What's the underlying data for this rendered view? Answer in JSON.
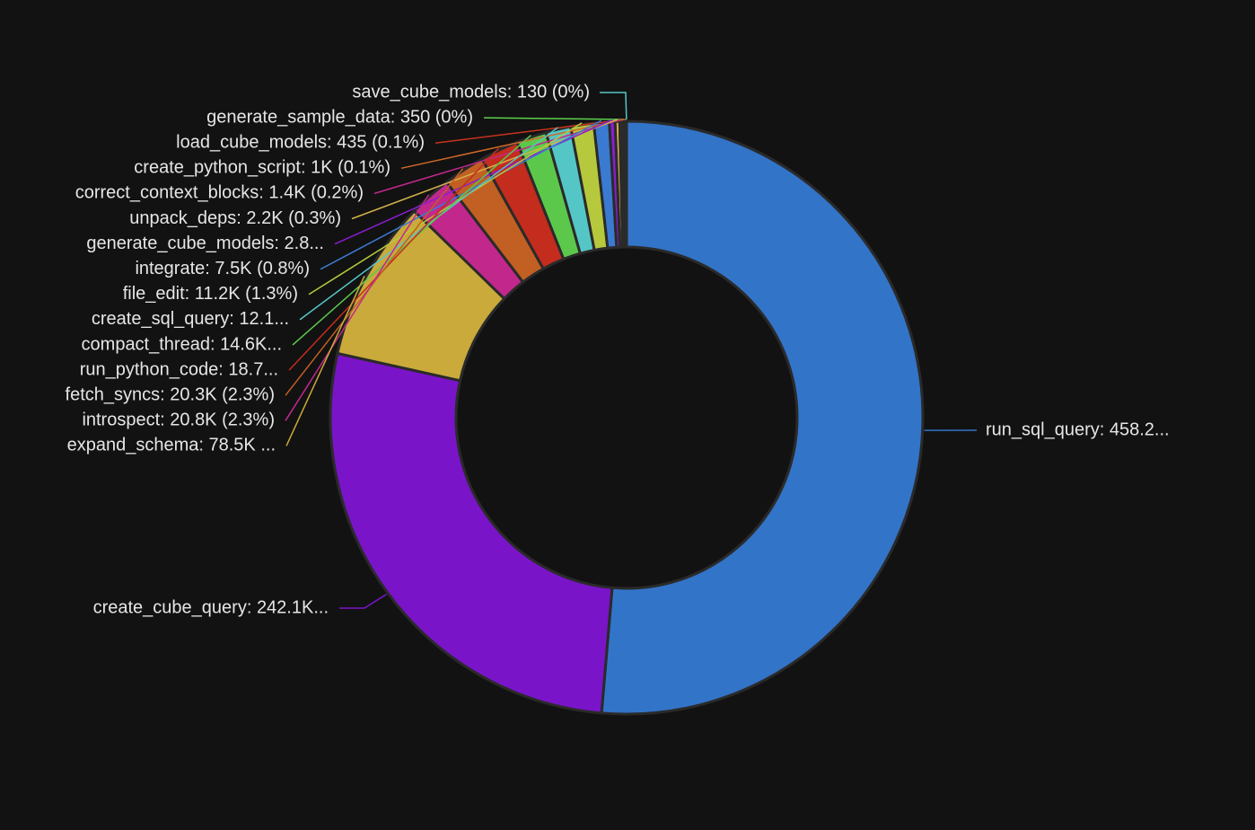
{
  "chart_data": {
    "type": "pie",
    "subtype": "donut",
    "legend": "none",
    "slices": [
      {
        "name": "run_sql_query",
        "value": 458200,
        "label": "run_sql_query: 458.2...",
        "color": "#3274c8"
      },
      {
        "name": "create_cube_query",
        "value": 242100,
        "label": "create_cube_query: 242.1K...",
        "color": "#7a14c8"
      },
      {
        "name": "expand_schema",
        "value": 78500,
        "label": "expand_schema: 78.5K ...",
        "color": "#c9aa3a"
      },
      {
        "name": "introspect",
        "value": 20800,
        "label": "introspect: 20.8K (2.3%)",
        "color": "#c2288c"
      },
      {
        "name": "fetch_syncs",
        "value": 20300,
        "label": "fetch_syncs: 20.3K (2.3%)",
        "color": "#c25f22"
      },
      {
        "name": "run_python_code",
        "value": 18700,
        "label": "run_python_code: 18.7...",
        "color": "#c42c1e"
      },
      {
        "name": "compact_thread",
        "value": 14600,
        "label": "compact_thread: 14.6K...",
        "color": "#5cc84b"
      },
      {
        "name": "create_sql_query",
        "value": 12100,
        "label": "create_sql_query: 12.1...",
        "color": "#55c6c6"
      },
      {
        "name": "file_edit",
        "value": 11200,
        "label": "file_edit: 11.2K (1.3%)",
        "color": "#b6c83c"
      },
      {
        "name": "integrate",
        "value": 7500,
        "label": "integrate: 7.5K (0.8%)",
        "color": "#3a7ad0"
      },
      {
        "name": "generate_cube_models",
        "value": 2800,
        "label": "generate_cube_models: 2.8...",
        "color": "#8a1ed0"
      },
      {
        "name": "unpack_deps",
        "value": 2200,
        "label": "unpack_deps: 2.2K (0.3%)",
        "color": "#d2b24a"
      },
      {
        "name": "correct_context_blocks",
        "value": 1400,
        "label": "correct_context_blocks: 1.4K (0.2%)",
        "color": "#c2288c"
      },
      {
        "name": "create_python_script",
        "value": 1000,
        "label": "create_python_script: 1K (0.1%)",
        "color": "#d0672a"
      },
      {
        "name": "load_cube_models",
        "value": 435,
        "label": "load_cube_models: 435 (0.1%)",
        "color": "#c8321e"
      },
      {
        "name": "generate_sample_data",
        "value": 350,
        "label": "generate_sample_data: 350 (0%)",
        "color": "#5cd04b"
      },
      {
        "name": "save_cube_models",
        "value": 130,
        "label": "save_cube_models: 130 (0%)",
        "color": "#55c6c6"
      }
    ]
  }
}
